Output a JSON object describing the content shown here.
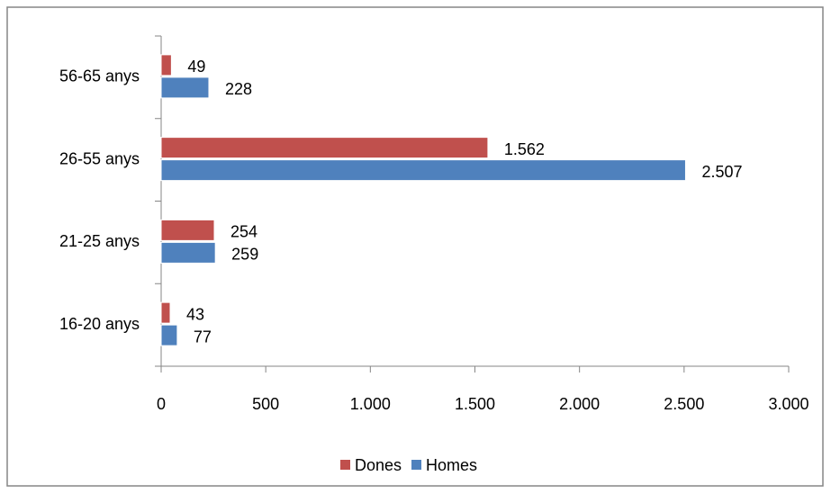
{
  "chart_data": {
    "type": "hbar",
    "categories": [
      "16-20 anys",
      "21-25 anys",
      "26-55 anys",
      "56-65 anys"
    ],
    "series": [
      {
        "name": "Dones",
        "color": "#c0504d",
        "values": [
          43,
          254,
          1562,
          49
        ],
        "value_labels": [
          "43",
          "254",
          "1.562",
          "49"
        ]
      },
      {
        "name": "Homes",
        "color": "#4f81bd",
        "values": [
          77,
          259,
          2507,
          228
        ],
        "value_labels": [
          "77",
          "259",
          "2.507",
          "228"
        ]
      }
    ],
    "xlim": [
      0,
      3000
    ],
    "xticks": [
      0,
      500,
      {
        "value": 1000,
        "label": "1.000"
      },
      {
        "value": 1500,
        "label": "1.500"
      },
      {
        "value": 2000,
        "label": "2.000"
      },
      {
        "value": 2500,
        "label": "2.500"
      },
      {
        "value": 3000,
        "label": "3.000"
      }
    ],
    "legend": "bottom"
  }
}
